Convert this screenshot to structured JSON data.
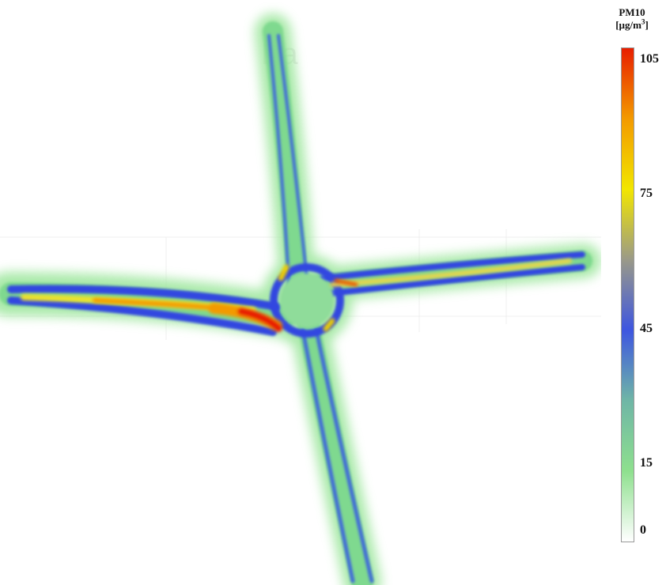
{
  "legend": {
    "title": "PM10",
    "unit_prefix": "[µg/m",
    "unit_exp": "3",
    "unit_suffix": "]",
    "ticks": [
      {
        "label": "105",
        "value": 105
      },
      {
        "label": "75",
        "value": 75
      },
      {
        "label": "45",
        "value": 45
      },
      {
        "label": "15",
        "value": 15
      },
      {
        "label": "0",
        "value": 0
      }
    ],
    "min": 0,
    "max": 105,
    "color_stops": [
      {
        "value": 0,
        "color": "#ffffff"
      },
      {
        "value": 15,
        "color": "#8ee08e"
      },
      {
        "value": 30,
        "color": "#6fb6a6"
      },
      {
        "value": 45,
        "color": "#3e56e0"
      },
      {
        "value": 60,
        "color": "#9a9a88"
      },
      {
        "value": 75,
        "color": "#f2e600"
      },
      {
        "value": 90,
        "color": "#f39a00"
      },
      {
        "value": 105,
        "color": "#e81e00"
      }
    ]
  },
  "watermark": "Ba",
  "roads": [
    {
      "name": "north-arm",
      "peak_value": 40
    },
    {
      "name": "south-arm",
      "peak_value": 45
    },
    {
      "name": "west-arm",
      "peak_value": 105
    },
    {
      "name": "east-arm",
      "peak_value": 80
    },
    {
      "name": "roundabout",
      "peak_value": 80
    }
  ]
}
